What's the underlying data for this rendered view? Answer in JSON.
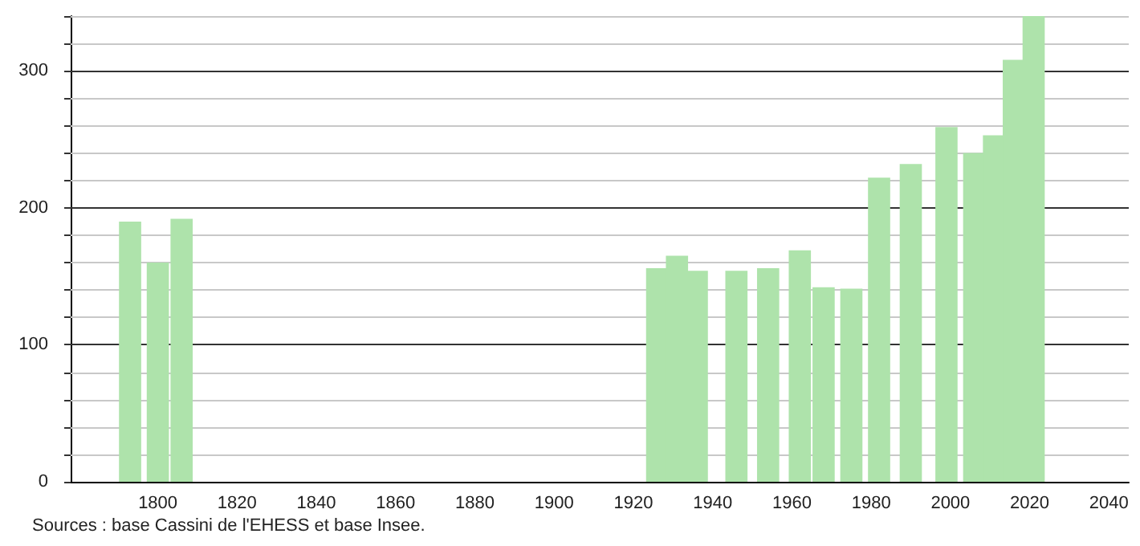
{
  "chart_data": {
    "type": "bar",
    "x": [
      1793,
      1800,
      1806,
      1926,
      1931,
      1936,
      1946,
      1954,
      1962,
      1968,
      1975,
      1982,
      1990,
      1999,
      2006,
      2011,
      2016,
      2021
    ],
    "values": [
      190,
      160,
      192,
      156,
      165,
      154,
      154,
      156,
      169,
      142,
      141,
      222,
      232,
      259,
      240,
      253,
      308,
      340
    ],
    "color": "#aee3ab",
    "xlim": [
      1778,
      2045
    ],
    "xticks": [
      1800,
      1820,
      1840,
      1860,
      1880,
      1900,
      1920,
      1940,
      1960,
      1980,
      2000,
      2020,
      2040
    ],
    "ylim": [
      0,
      340
    ],
    "yticks": [
      0,
      {
        "value": 20,
        "label": null
      },
      {
        "value": 40,
        "label": null
      },
      {
        "value": 60,
        "label": null
      },
      {
        "value": 80,
        "label": null
      },
      100,
      {
        "value": 120,
        "label": null
      },
      {
        "value": 140,
        "label": null
      },
      {
        "value": 160,
        "label": null
      },
      {
        "value": 180,
        "label": null
      },
      200,
      {
        "value": 220,
        "label": null
      },
      {
        "value": 240,
        "label": null
      },
      {
        "value": 260,
        "label": null
      },
      {
        "value": 280,
        "label": null
      },
      300,
      {
        "value": 320,
        "label": null
      },
      {
        "value": 340,
        "label": null
      }
    ],
    "grid": "y",
    "annotations": [
      "Sources : base Cassini de l'EHESS et base Insee."
    ]
  }
}
